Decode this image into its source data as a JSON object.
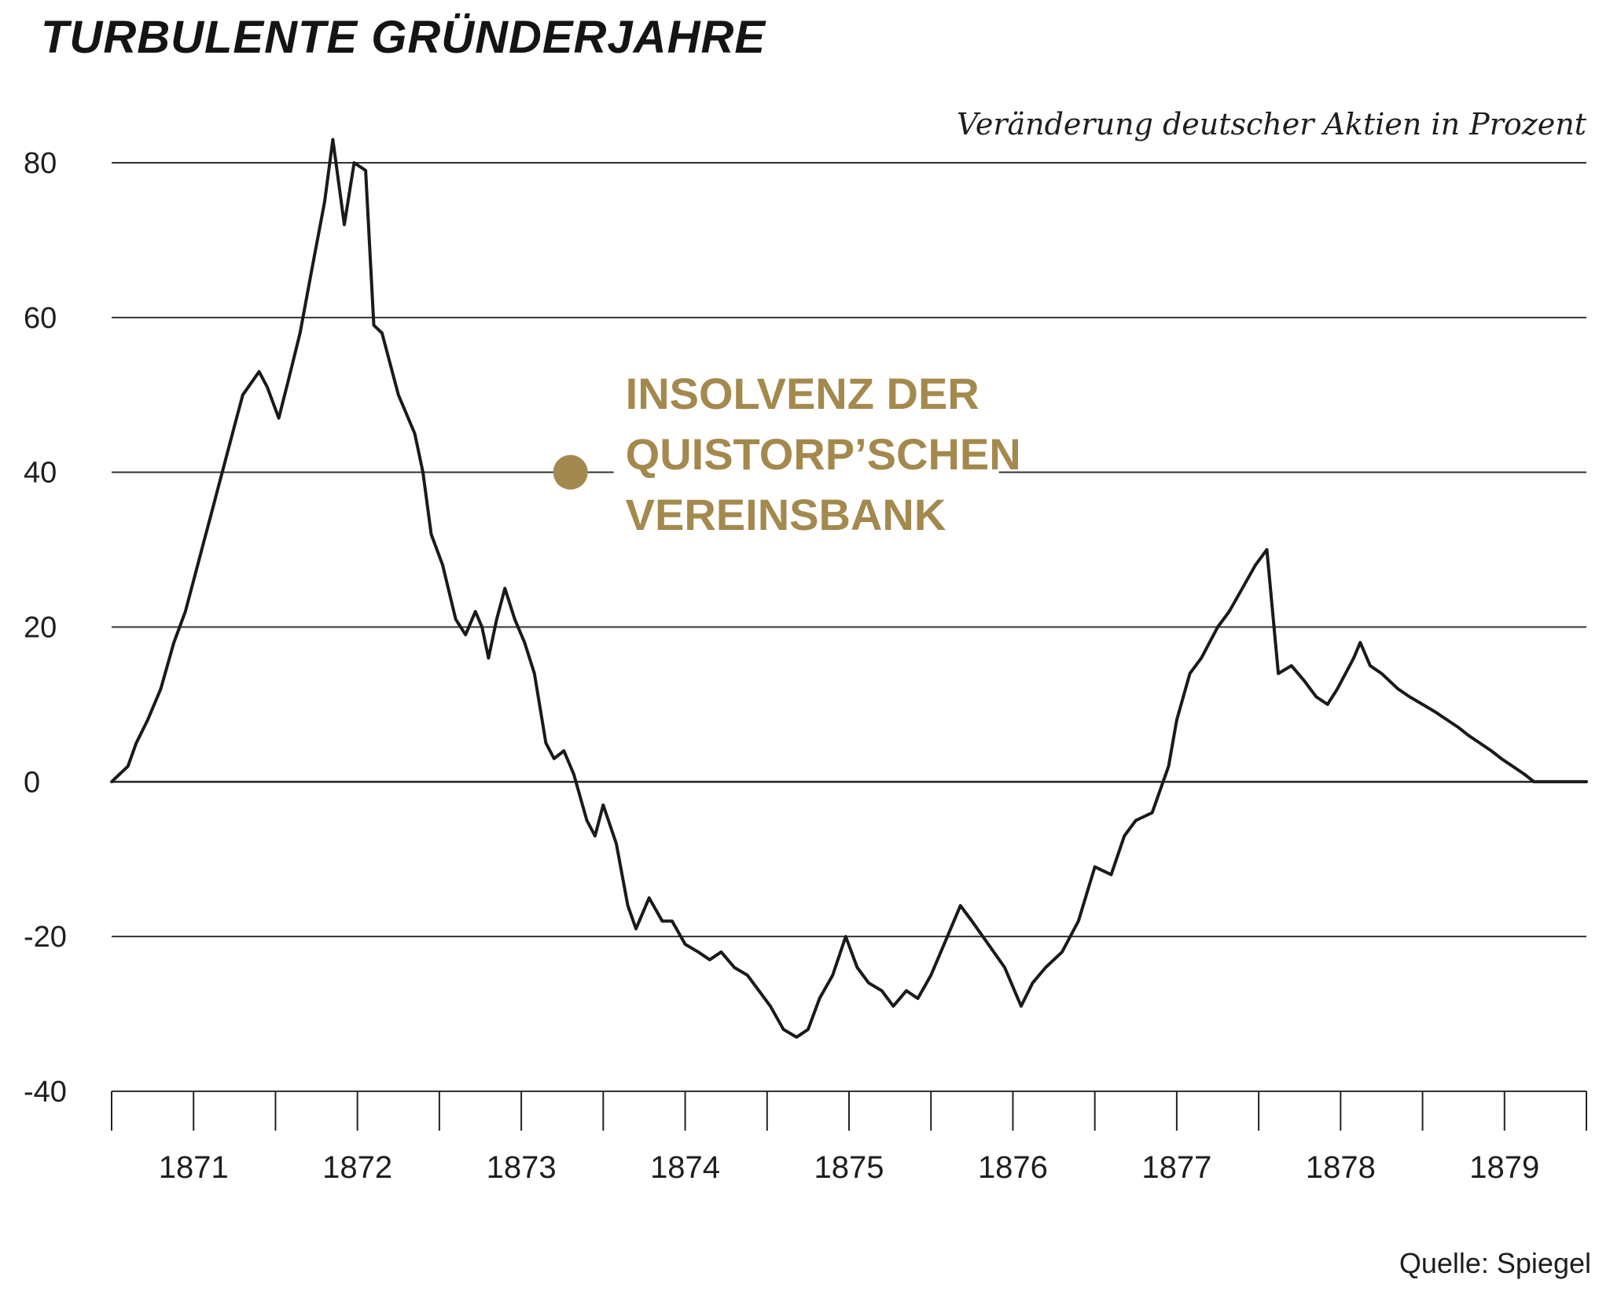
{
  "chart_data": {
    "type": "line",
    "title": "TURBULENTE GRÜNDERJAHRE",
    "subtitle": "Veränderung deutscher Aktien in Prozent",
    "source": "Quelle: Spiegel",
    "ylim": [
      -40,
      80
    ],
    "yticks": [
      80,
      60,
      40,
      20,
      0,
      -20,
      -40
    ],
    "xlim": [
      1870.5,
      1879.5
    ],
    "xticks": [
      1871,
      1872,
      1873,
      1874,
      1875,
      1876,
      1877,
      1878,
      1879
    ],
    "grid": true,
    "series": [
      {
        "color": "#1a1a1a",
        "x": [
          1870.5,
          1870.6,
          1870.65,
          1870.72,
          1870.8,
          1870.88,
          1870.95,
          1871.0,
          1871.05,
          1871.1,
          1871.15,
          1871.2,
          1871.25,
          1871.3,
          1871.4,
          1871.45,
          1871.52,
          1871.58,
          1871.65,
          1871.72,
          1871.8,
          1871.85,
          1871.92,
          1871.98,
          1872.05,
          1872.1,
          1872.15,
          1872.25,
          1872.35,
          1872.4,
          1872.45,
          1872.52,
          1872.6,
          1872.66,
          1872.72,
          1872.76,
          1872.8,
          1872.85,
          1872.9,
          1872.96,
          1873.02,
          1873.08,
          1873.15,
          1873.2,
          1873.26,
          1873.32,
          1873.4,
          1873.45,
          1873.5,
          1873.58,
          1873.65,
          1873.7,
          1873.78,
          1873.86,
          1873.92,
          1874.0,
          1874.08,
          1874.15,
          1874.22,
          1874.3,
          1874.38,
          1874.45,
          1874.52,
          1874.6,
          1874.68,
          1874.75,
          1874.82,
          1874.9,
          1874.98,
          1875.05,
          1875.12,
          1875.2,
          1875.27,
          1875.35,
          1875.42,
          1875.5,
          1875.6,
          1875.68,
          1875.75,
          1875.85,
          1875.95,
          1876.05,
          1876.12,
          1876.2,
          1876.3,
          1876.4,
          1876.5,
          1876.6,
          1876.68,
          1876.75,
          1876.85,
          1876.95,
          1877.0,
          1877.08,
          1877.15,
          1877.2,
          1877.25,
          1877.32,
          1877.4,
          1877.48,
          1877.55,
          1877.62,
          1877.7,
          1877.78,
          1877.85,
          1877.92,
          1877.98,
          1878.03,
          1878.08,
          1878.12,
          1878.18,
          1878.25,
          1878.3,
          1878.35,
          1878.42,
          1878.5,
          1878.58,
          1878.65,
          1878.72,
          1878.78,
          1878.85,
          1878.92,
          1878.98,
          1879.05,
          1879.12,
          1879.18,
          1879.25,
          1879.32,
          1879.38,
          1879.45,
          1879.5
        ],
        "y": [
          0,
          2,
          5,
          8,
          12,
          18,
          22,
          26,
          30,
          34,
          38,
          42,
          46,
          50,
          53,
          51,
          47,
          52,
          58,
          66,
          75,
          83,
          72,
          80,
          79,
          59,
          58,
          50,
          45,
          40,
          32,
          28,
          21,
          19,
          22,
          20,
          16,
          21,
          25,
          21,
          18,
          14,
          5,
          3,
          4,
          1,
          -5,
          -7,
          -3,
          -8,
          -16,
          -19,
          -15,
          -18,
          -18,
          -21,
          -22,
          -23,
          -22,
          -24,
          -25,
          -27,
          -29,
          -32,
          -33,
          -32,
          -28,
          -25,
          -20,
          -24,
          -26,
          -27,
          -29,
          -27,
          -28,
          -25,
          -20,
          -16,
          -18,
          -21,
          -24,
          -29,
          -26,
          -24,
          -22,
          -18,
          -11,
          -12,
          -7,
          -5,
          -4,
          2,
          8,
          14,
          16,
          18,
          20,
          22,
          25,
          28,
          30,
          14,
          15,
          13,
          11,
          10,
          12,
          14,
          16,
          18,
          15,
          14,
          13,
          12,
          11,
          10,
          9,
          8,
          7,
          6,
          5,
          4,
          3,
          2,
          1,
          0,
          0,
          0,
          0,
          0,
          0
        ]
      }
    ],
    "annotation": {
      "x": 1873.3,
      "y": 40,
      "lines": [
        "INSOLVENZ DER",
        "QUISTORP’SCHEN",
        "VEREINSBANK"
      ],
      "color": "#a4894e"
    }
  }
}
